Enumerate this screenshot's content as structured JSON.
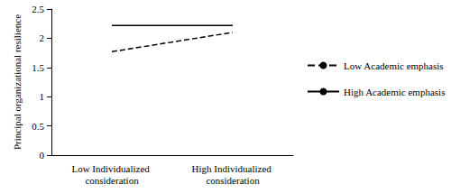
{
  "chart_data": {
    "type": "line",
    "y_label": "Principal organizational resilience",
    "categories": [
      "Low Individualized consideration",
      "High Individualized consideration"
    ],
    "series": [
      {
        "name": "Low Academic emphasis",
        "color": "#000000",
        "line_style": "dashed",
        "marker": "none",
        "values": [
          1.77,
          2.1
        ]
      },
      {
        "name": "High Academic emphasis",
        "color": "#000000",
        "line_style": "solid",
        "marker": "none",
        "values": [
          2.22,
          2.22
        ]
      }
    ],
    "ylim": [
      0,
      2.5
    ],
    "yticks": [
      0,
      0.5,
      1,
      1.5,
      2,
      2.5
    ],
    "grid": false,
    "legend": "right"
  }
}
